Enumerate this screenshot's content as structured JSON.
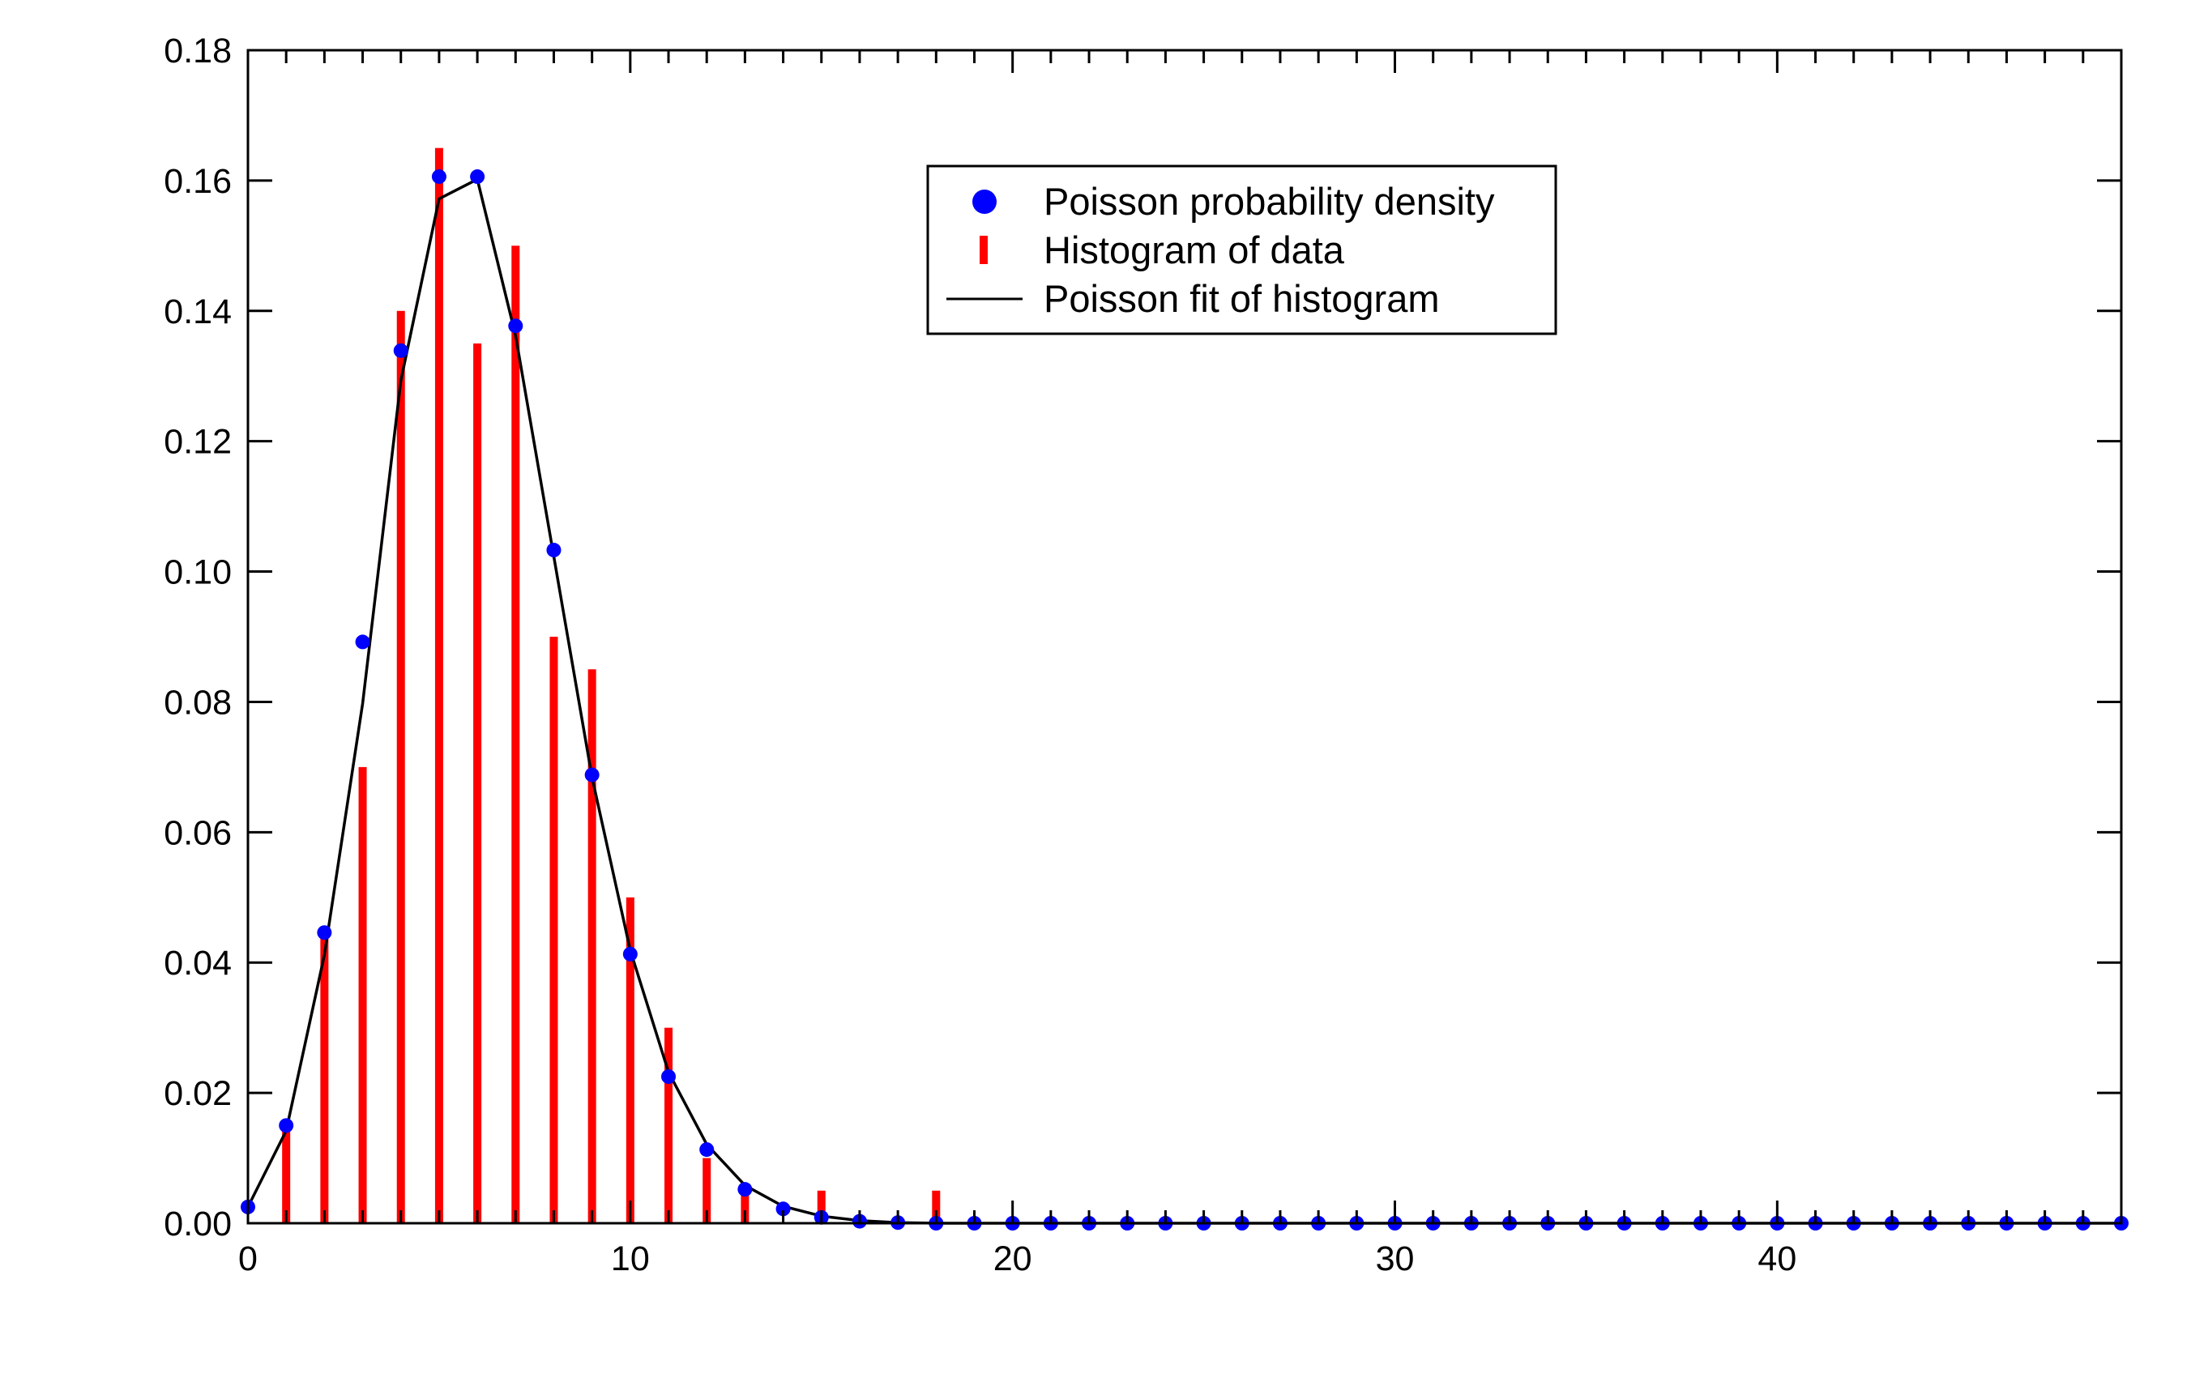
{
  "chart_data": {
    "type": "bar",
    "title": "",
    "xlabel": "",
    "ylabel": "",
    "xlim": [
      0,
      49
    ],
    "ylim": [
      0,
      0.18
    ],
    "grid": false,
    "legend_position": "top-center",
    "x_ticks": [
      0,
      10,
      20,
      30,
      40
    ],
    "x_tick_labels": [
      "0",
      "10",
      "20",
      "30",
      "40"
    ],
    "y_ticks": [
      0,
      0.02,
      0.04,
      0.06,
      0.08,
      0.1,
      0.12,
      0.14,
      0.16,
      0.18
    ],
    "y_tick_labels": [
      "0.00",
      "0.02",
      "0.04",
      "0.06",
      "0.08",
      "0.10",
      "0.12",
      "0.14",
      "0.16",
      "0.18"
    ],
    "legend": [
      {
        "label": "Poisson probability density",
        "marker": "circle",
        "color": "#0000ff"
      },
      {
        "label": "Histogram of data",
        "marker": "bar",
        "color": "#ff0000"
      },
      {
        "label": "Poisson fit of histogram",
        "marker": "line",
        "color": "#000000"
      }
    ],
    "series": [
      {
        "kind": "scatter",
        "color": "#0000ff",
        "x": [
          0,
          1,
          2,
          3,
          4,
          5,
          6,
          7,
          8,
          9,
          10,
          11,
          12,
          13,
          14,
          15,
          16,
          17,
          18,
          19,
          20,
          21,
          22,
          23,
          24,
          25,
          26,
          27,
          28,
          29,
          30,
          31,
          32,
          33,
          34,
          35,
          36,
          37,
          38,
          39,
          40,
          41,
          42,
          43,
          44,
          45,
          46,
          47,
          48,
          49
        ],
        "y": [
          0.0025,
          0.015,
          0.0446,
          0.0892,
          0.1339,
          0.1606,
          0.1606,
          0.1377,
          0.1033,
          0.0688,
          0.0413,
          0.0225,
          0.0113,
          0.0052,
          0.0022,
          0.0009,
          0.0003,
          0.0001,
          0,
          0,
          0,
          0,
          0,
          0,
          0,
          0,
          0,
          0,
          0,
          0,
          0,
          0,
          0,
          0,
          0,
          0,
          0,
          0,
          0,
          0,
          0,
          0,
          0,
          0,
          0,
          0,
          0,
          0,
          0,
          0
        ]
      },
      {
        "kind": "bar",
        "color": "#ff0000",
        "x": [
          1,
          2,
          3,
          4,
          5,
          6,
          7,
          8,
          9,
          10,
          11,
          12,
          13,
          15,
          18
        ],
        "y": [
          0.015,
          0.045,
          0.07,
          0.14,
          0.165,
          0.135,
          0.15,
          0.09,
          0.085,
          0.05,
          0.03,
          0.01,
          0.005,
          0.005,
          0.005
        ]
      },
      {
        "kind": "line",
        "color": "#000000",
        "x": [
          0,
          1,
          2,
          3,
          4,
          5,
          6,
          7,
          8,
          9,
          10,
          11,
          12,
          13,
          14,
          15,
          16,
          17,
          18,
          19,
          20,
          21,
          22,
          23,
          24,
          25,
          26,
          27,
          28,
          29,
          30,
          31,
          32,
          33,
          34,
          35,
          36,
          37,
          38,
          39,
          40,
          41,
          42,
          43,
          44,
          45,
          46,
          47,
          48,
          49
        ],
        "y": [
          0.0025,
          0.0142,
          0.0412,
          0.0798,
          0.1293,
          0.1572,
          0.1602,
          0.1362,
          0.1023,
          0.0684,
          0.0419,
          0.0232,
          0.0121,
          0.0058,
          0.0026,
          0.0011,
          0.0004,
          0.0001,
          0,
          0,
          0,
          0,
          0,
          0,
          0,
          0,
          0,
          0,
          0,
          0,
          0,
          0,
          0,
          0,
          0,
          0,
          0,
          0,
          0,
          0,
          0,
          0,
          0,
          0,
          0,
          0,
          0,
          0,
          0,
          0
        ]
      }
    ]
  }
}
